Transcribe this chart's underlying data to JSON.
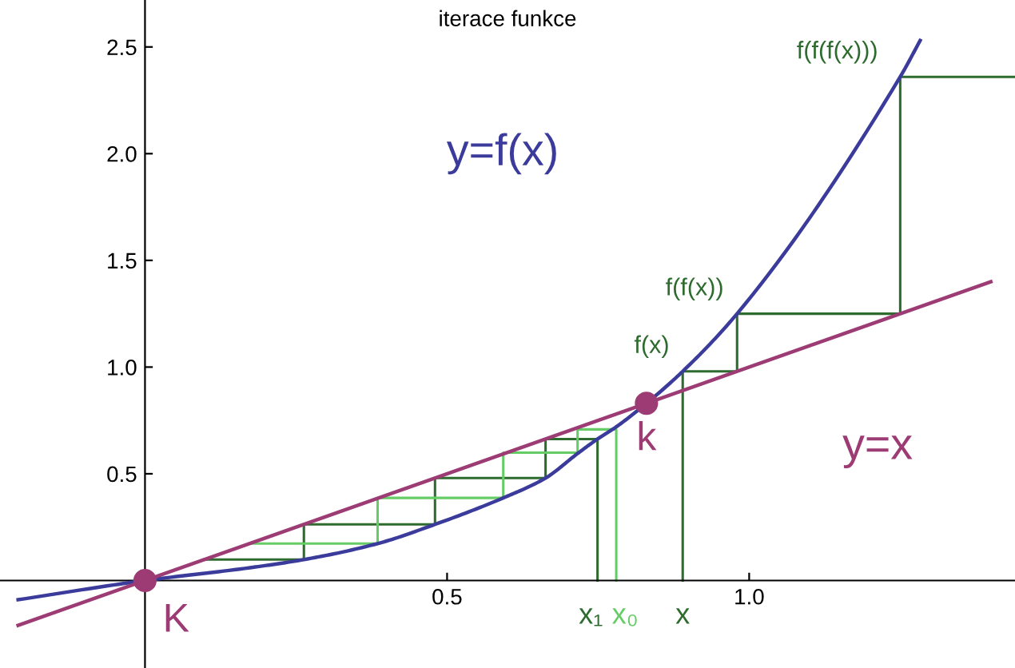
{
  "chart_data": {
    "type": "line",
    "title": "iterace funkce",
    "xlim": [
      -0.24,
      1.44
    ],
    "ylim": [
      -0.41,
      2.72
    ],
    "xticks": [
      0.5,
      {
        "value": 1.0,
        "label": "1.0"
      }
    ],
    "yticks": [
      0.5,
      {
        "value": 1.0,
        "label": "1.0"
      },
      1.5,
      {
        "value": 2.0,
        "label": "2.0"
      },
      2.5
    ],
    "grid": false,
    "legend": false,
    "marker": "none",
    "line_style": "solid",
    "series": [
      {
        "name": "y=f(x)",
        "color": "#3b3b9c",
        "x": [
          -0.21,
          0,
          0.174,
          0.263,
          0.385,
          0.48,
          0.593,
          0.663,
          0.716,
          0.749,
          0.78,
          0.83,
          0.89,
          0.98,
          1.25,
          1.283
        ],
        "values": [
          -0.09,
          0,
          0.06,
          0.098,
          0.173,
          0.263,
          0.387,
          0.48,
          0.595,
          0.663,
          0.72,
          0.83,
          0.98,
          1.25,
          2.36,
          2.53
        ]
      },
      {
        "name": "y=x",
        "color": "#9c3b74",
        "x": [
          -0.21,
          1.4
        ],
        "values": [
          -0.21,
          1.4
        ]
      },
      {
        "color": "#2e6b2e",
        "x": [
          0.749,
          0.749,
          0.663,
          0.663,
          0.48,
          0.48,
          0.263,
          0.263,
          0.098
        ],
        "values": [
          0,
          0.663,
          0.663,
          0.48,
          0.48,
          0.263,
          0.263,
          0.098,
          0.098
        ]
      },
      {
        "color": "#66cc66",
        "x": [
          0.78,
          0.78,
          0.716,
          0.716,
          0.593,
          0.593,
          0.385,
          0.385,
          0.174
        ],
        "values": [
          0,
          0.708,
          0.708,
          0.599,
          0.599,
          0.387,
          0.387,
          0.173,
          0.173
        ]
      },
      {
        "color": "#2e6b2e",
        "x": [
          0.89,
          0.89,
          0.98,
          0.98,
          1.25,
          1.25,
          1.44
        ],
        "values": [
          0,
          0.98,
          0.98,
          1.25,
          1.25,
          2.36,
          2.36
        ]
      },
      {
        "type": "scatter",
        "marker": "circle",
        "color": "#9c3b74",
        "x": [
          0,
          0.83
        ],
        "values": [
          0,
          0.83
        ]
      }
    ],
    "annotations": [
      {
        "text": "K",
        "x": 0,
        "y": 0
      },
      {
        "text": "k",
        "x": 0.83,
        "y": 0.83
      },
      {
        "text": "f(x)",
        "x": 0.89,
        "y": 0.98
      },
      {
        "text": "f(f(x))",
        "x": 0.98,
        "y": 1.25
      },
      {
        "text": "f(f(f(x)))",
        "x": 1.25,
        "y": 2.36
      },
      {
        "text": "x₁",
        "x": 0.749,
        "y": 0
      },
      {
        "text": "x₀",
        "x": 0.78,
        "y": 0
      },
      {
        "text": "x",
        "x": 0.89,
        "y": 0
      }
    ]
  }
}
